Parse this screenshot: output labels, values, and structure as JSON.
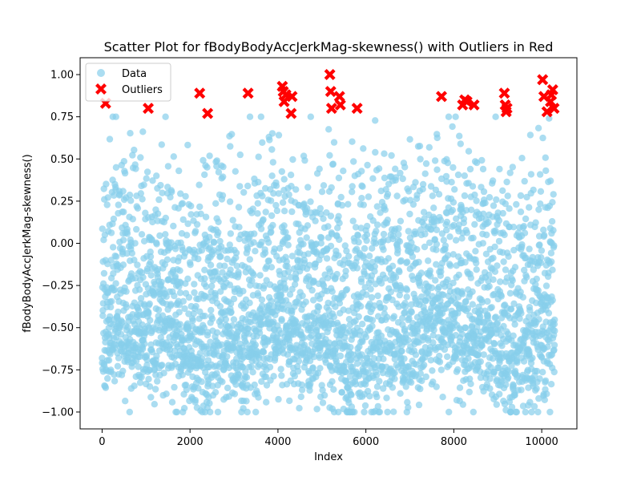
{
  "chart_data": {
    "type": "scatter",
    "title": "Scatter Plot for fBodyBodyAccJerkMag-skewness() with Outliers in Red",
    "xlabel": "Index",
    "ylabel": "fBodyBodyAccJerkMag-skewness()",
    "xlim": [
      -500,
      10800
    ],
    "ylim": [
      -1.1,
      1.1
    ],
    "x_ticks": [
      0,
      2000,
      4000,
      6000,
      8000,
      10000
    ],
    "y_ticks": [
      -1.0,
      -0.75,
      -0.5,
      -0.25,
      0.0,
      0.25,
      0.5,
      0.75,
      1.0
    ],
    "x_tick_labels": [
      "0",
      "2000",
      "4000",
      "6000",
      "8000",
      "10000"
    ],
    "y_tick_labels": [
      "−1.00",
      "−0.75",
      "−0.50",
      "−0.25",
      "0.00",
      "0.25",
      "0.50",
      "0.75",
      "1.00"
    ],
    "grid": false,
    "legend_position": "top-left",
    "legend": [
      "Data",
      "Outliers"
    ],
    "colors": {
      "data": "#87ceeb",
      "outliers": "#ff0000"
    },
    "data_series": {
      "name": "Data",
      "n_points": 10299,
      "x_range": [
        0,
        10298
      ],
      "y_range": [
        -1.0,
        0.75
      ]
    },
    "outliers": {
      "name": "Outliers",
      "x": [
        80,
        1050,
        2220,
        2400,
        3320,
        4100,
        4120,
        4140,
        4180,
        4300,
        4320,
        5180,
        5200,
        5220,
        5400,
        5420,
        5800,
        7720,
        8200,
        8250,
        8300,
        8460,
        9150,
        9170,
        9190,
        9210,
        10020,
        10050,
        10120,
        10200,
        10220,
        10250,
        10280
      ],
      "y": [
        0.83,
        0.8,
        0.89,
        0.77,
        0.89,
        0.93,
        0.9,
        0.84,
        0.88,
        0.77,
        0.87,
        1.0,
        0.9,
        0.8,
        0.87,
        0.82,
        0.8,
        0.87,
        0.82,
        0.85,
        0.84,
        0.82,
        0.89,
        0.82,
        0.78,
        0.8,
        0.97,
        0.87,
        0.78,
        0.84,
        0.88,
        0.91,
        0.8
      ]
    }
  }
}
